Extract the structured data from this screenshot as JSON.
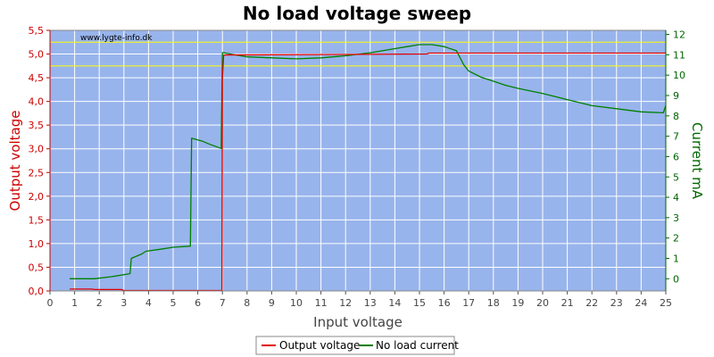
{
  "chart_data": {
    "type": "line",
    "title": "No load voltage sweep",
    "watermark": "www.lygte-info.dk",
    "xlabel": "Input voltage",
    "ylabel_left": "Output voltage",
    "ylabel_right": "Current mA",
    "xlim": [
      0,
      25
    ],
    "ylim_left": [
      0,
      5.5
    ],
    "ylim_right": [
      -0.6,
      12.2
    ],
    "x_ticks": [
      "0",
      "1",
      "2",
      "3",
      "4",
      "5",
      "6",
      "7",
      "8",
      "9",
      "10",
      "11",
      "12",
      "13",
      "14",
      "15",
      "16",
      "17",
      "18",
      "19",
      "20",
      "21",
      "22",
      "23",
      "24",
      "25"
    ],
    "y_left_ticks": [
      "0,0",
      "0,5",
      "1,0",
      "1,5",
      "2,0",
      "2,5",
      "3,0",
      "3,5",
      "4,0",
      "4,5",
      "5,0",
      "5,5"
    ],
    "y_right_ticks": [
      "0",
      "1",
      "2",
      "3",
      "4",
      "5",
      "6",
      "7",
      "8",
      "9",
      "10",
      "11",
      "12"
    ],
    "reference_lines_left": [
      5.25,
      4.75
    ],
    "grid": true,
    "legend_position": "bottom-center",
    "colors": {
      "plot_bg": "#98b4ec",
      "grid": "#ffffff",
      "left_axis": "#cc0000",
      "right_axis": "#006600",
      "x_axis": "#555555",
      "reference": "#ffff00",
      "output_voltage": "#e00000",
      "no_load_current": "#008000"
    },
    "series": [
      {
        "name": "Output voltage",
        "axis": "left",
        "x": [
          0.8,
          1.7,
          1.8,
          2.9,
          3.0,
          6.98,
          7.0,
          7.05,
          15.3,
          15.4,
          25.0
        ],
        "values": [
          0.04,
          0.04,
          0.03,
          0.03,
          0.01,
          0.01,
          4.5,
          4.98,
          5.0,
          5.02,
          5.02
        ]
      },
      {
        "name": "No load current",
        "axis": "right",
        "x": [
          0.8,
          1.8,
          2.5,
          3.25,
          3.3,
          3.7,
          3.9,
          4.5,
          5.0,
          5.7,
          5.75,
          6.2,
          6.5,
          6.95,
          7.0,
          7.05,
          7.5,
          8.0,
          9.0,
          10.0,
          11.0,
          12.0,
          13.0,
          14.0,
          14.5,
          15.0,
          15.5,
          16.0,
          16.5,
          16.8,
          17.0,
          17.5,
          18.0,
          18.5,
          19.0,
          20.0,
          21.0,
          22.0,
          23.0,
          24.0,
          24.9,
          25.0
        ],
        "values": [
          0.0,
          0.0,
          0.1,
          0.25,
          1.0,
          1.2,
          1.35,
          1.45,
          1.55,
          1.6,
          6.9,
          6.75,
          6.6,
          6.4,
          11.1,
          11.1,
          11.0,
          10.9,
          10.85,
          10.8,
          10.85,
          10.95,
          11.1,
          11.3,
          11.4,
          11.5,
          11.5,
          11.4,
          11.2,
          10.5,
          10.2,
          9.9,
          9.7,
          9.5,
          9.35,
          9.1,
          8.8,
          8.5,
          8.35,
          8.2,
          8.15,
          8.5
        ]
      }
    ]
  }
}
